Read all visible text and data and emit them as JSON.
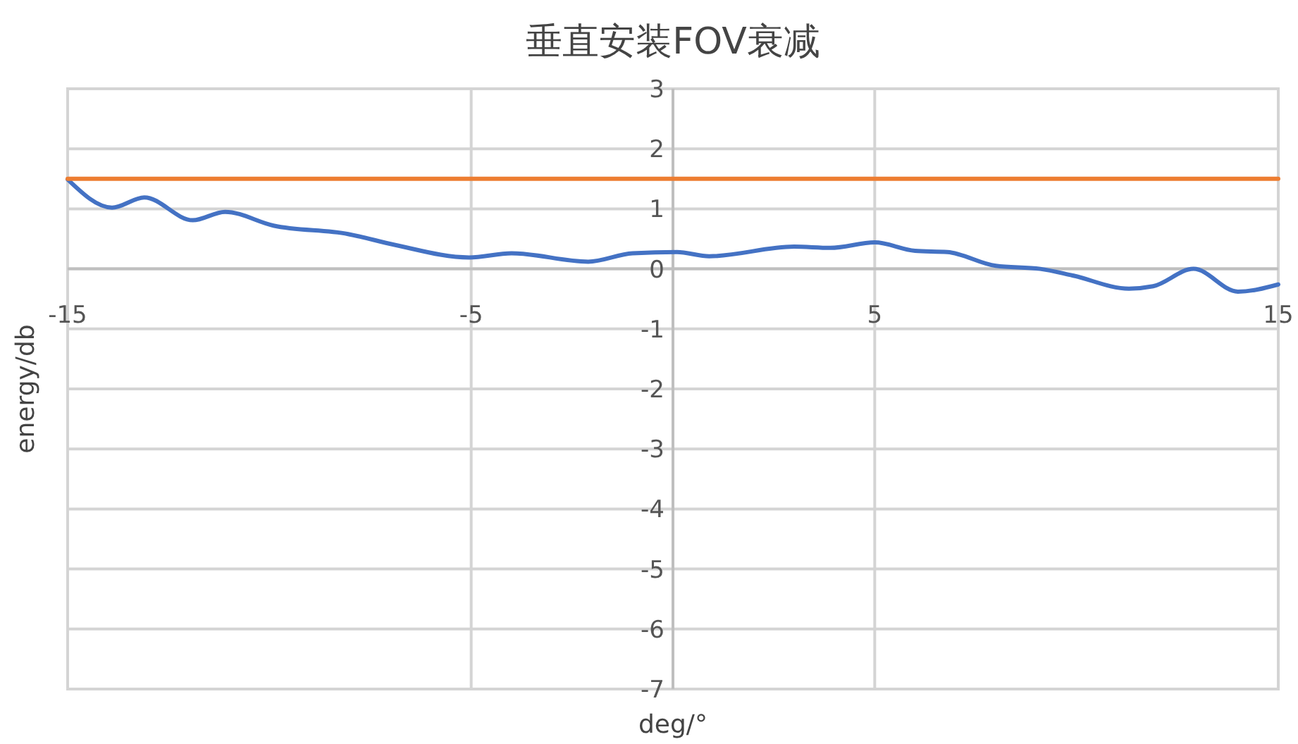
{
  "chart_data": {
    "type": "line",
    "title": "垂直安装FOV衰减",
    "xlabel": "deg/°",
    "ylabel": "energy/db",
    "xlim": [
      -15,
      15
    ],
    "xticks": [
      -15,
      -5,
      5,
      15
    ],
    "ylim": [
      -7,
      3
    ],
    "yticks": [
      -7,
      -6,
      -5,
      -4,
      -3,
      -2,
      -1,
      0,
      1,
      2,
      3
    ],
    "grid": true,
    "marker": "none",
    "line_style": "solid",
    "series": [
      {
        "color": "#4472c4",
        "x": [
          -15,
          -13.9,
          -13.1,
          -11.9,
          -11.1,
          -9.9,
          -8.05,
          -6.9,
          -5.05,
          -4.0,
          -2.1,
          -1.0,
          0.1,
          0.9,
          3.0,
          3.9,
          5.0,
          6.0,
          6.8,
          8.0,
          9.1,
          9.9,
          11.3,
          11.9,
          12.9,
          14.0,
          15
        ],
        "values": [
          1.49,
          1.02,
          1.19,
          0.81,
          0.95,
          0.72,
          0.58,
          0.4,
          0.19,
          0.26,
          0.12,
          0.26,
          0.28,
          0.21,
          0.37,
          0.35,
          0.44,
          0.3,
          0.28,
          0.05,
          0.0,
          -0.11,
          -0.33,
          -0.29,
          0.0,
          -0.38,
          -0.26
        ]
      },
      {
        "color": "#ed7d31",
        "x": [
          -15,
          15
        ],
        "values": [
          1.5,
          1.5
        ]
      }
    ]
  }
}
